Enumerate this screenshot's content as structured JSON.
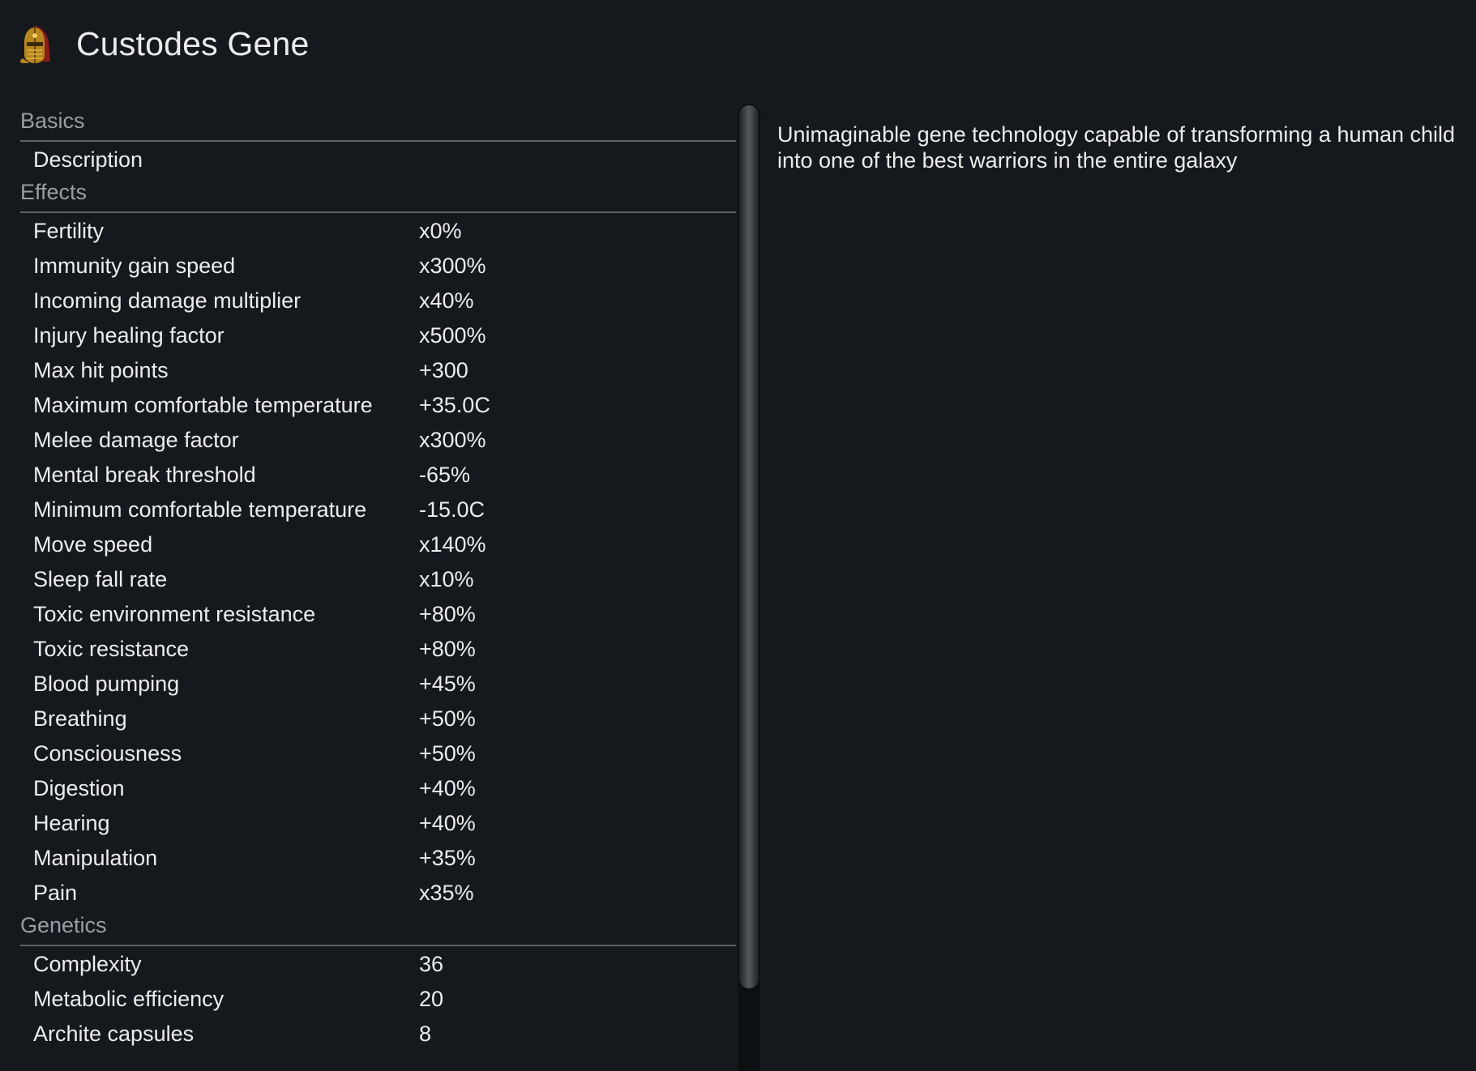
{
  "title": "Custodes Gene",
  "icon": "custodes-helmet-icon",
  "sections": {
    "basics": {
      "header": "Basics",
      "description_label": "Description"
    },
    "effects": {
      "header": "Effects",
      "rows": [
        {
          "label": "Fertility",
          "value": "x0%"
        },
        {
          "label": "Immunity gain speed",
          "value": "x300%"
        },
        {
          "label": "Incoming damage multiplier",
          "value": "x40%"
        },
        {
          "label": "Injury healing factor",
          "value": "x500%"
        },
        {
          "label": "Max hit points",
          "value": "+300"
        },
        {
          "label": "Maximum comfortable temperature",
          "value": "+35.0C"
        },
        {
          "label": "Melee damage factor",
          "value": "x300%"
        },
        {
          "label": "Mental break threshold",
          "value": "-65%"
        },
        {
          "label": "Minimum comfortable temperature",
          "value": "-15.0C"
        },
        {
          "label": "Move speed",
          "value": "x140%"
        },
        {
          "label": "Sleep fall rate",
          "value": "x10%"
        },
        {
          "label": "Toxic environment resistance",
          "value": "+80%"
        },
        {
          "label": "Toxic resistance",
          "value": "+80%"
        },
        {
          "label": "Blood pumping",
          "value": "+45%"
        },
        {
          "label": "Breathing",
          "value": "+50%"
        },
        {
          "label": "Consciousness",
          "value": "+50%"
        },
        {
          "label": "Digestion",
          "value": "+40%"
        },
        {
          "label": "Hearing",
          "value": "+40%"
        },
        {
          "label": "Manipulation",
          "value": "+35%"
        },
        {
          "label": "Pain",
          "value": "x35%"
        }
      ]
    },
    "genetics": {
      "header": "Genetics",
      "rows": [
        {
          "label": "Complexity",
          "value": "36"
        },
        {
          "label": "Metabolic efficiency",
          "value": "20"
        },
        {
          "label": "Archite capsules",
          "value": "8"
        }
      ]
    }
  },
  "description_text": "Unimaginable gene technology capable of transforming a human child into one of the best warriors in the entire galaxy",
  "colors": {
    "background": "#15191e",
    "text": "#ececec",
    "section_header": "#9a9da1",
    "divider": "#5e6166"
  }
}
